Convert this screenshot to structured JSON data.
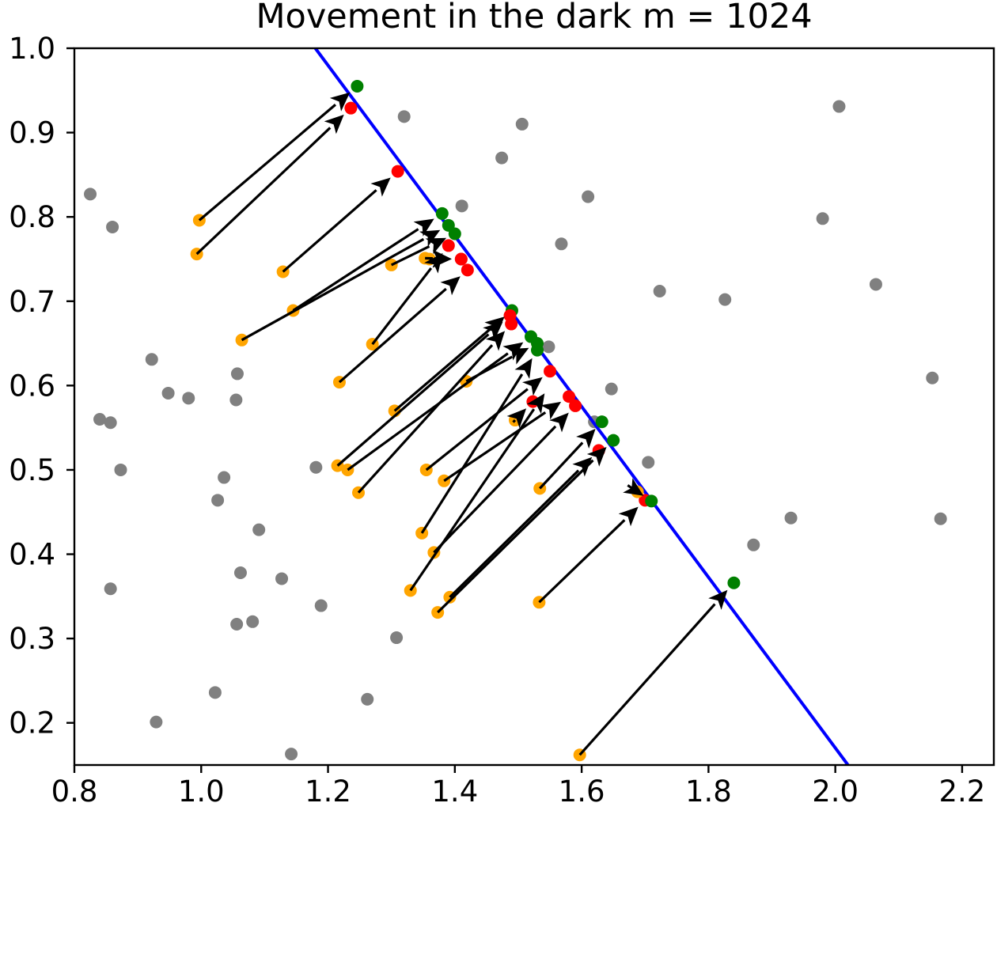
{
  "chart_data": {
    "type": "scatter",
    "title": "Movement in the dark m = 1024",
    "xlabel": "",
    "ylabel": "",
    "xlim": [
      0.8,
      2.25
    ],
    "ylim": [
      0.15,
      1.0
    ],
    "xticks": [
      "0.8",
      "1.0",
      "1.2",
      "1.4",
      "1.6",
      "1.8",
      "2.0",
      "2.2"
    ],
    "yticks": [
      "0.2",
      "0.3",
      "0.4",
      "0.5",
      "0.6",
      "0.7",
      "0.8",
      "0.9",
      "1.0"
    ],
    "grid": false,
    "legend": "none",
    "colors": {
      "gray": "#808080",
      "orange": "#ffa500",
      "red": "#ff0000",
      "green": "#008000",
      "arrow": "#000000",
      "line": "#0000ff"
    },
    "boundary_line": {
      "x1": 1.18,
      "y1": 1.0,
      "x2": 2.02,
      "y2": 0.15
    },
    "gray_points": [
      [
        0.825,
        0.827
      ],
      [
        0.86,
        0.788
      ],
      [
        0.84,
        0.56
      ],
      [
        0.857,
        0.556
      ],
      [
        0.873,
        0.5
      ],
      [
        0.857,
        0.359
      ],
      [
        0.922,
        0.631
      ],
      [
        0.948,
        0.591
      ],
      [
        0.98,
        0.585
      ],
      [
        0.929,
        0.201
      ],
      [
        1.057,
        0.614
      ],
      [
        1.055,
        0.583
      ],
      [
        1.036,
        0.491
      ],
      [
        1.026,
        0.464
      ],
      [
        1.091,
        0.429
      ],
      [
        1.062,
        0.378
      ],
      [
        1.127,
        0.371
      ],
      [
        1.056,
        0.317
      ],
      [
        1.081,
        0.32
      ],
      [
        1.189,
        0.339
      ],
      [
        1.022,
        0.236
      ],
      [
        1.142,
        0.163
      ],
      [
        1.262,
        0.228
      ],
      [
        1.181,
        0.503
      ],
      [
        1.308,
        0.301
      ],
      [
        1.32,
        0.919
      ],
      [
        1.506,
        0.91
      ],
      [
        1.474,
        0.87
      ],
      [
        1.411,
        0.813
      ],
      [
        1.61,
        0.824
      ],
      [
        1.568,
        0.768
      ],
      [
        1.723,
        0.712
      ],
      [
        1.826,
        0.702
      ],
      [
        1.548,
        0.646
      ],
      [
        1.647,
        0.596
      ],
      [
        1.62,
        0.557
      ],
      [
        1.705,
        0.509
      ],
      [
        2.006,
        0.931
      ],
      [
        1.98,
        0.798
      ],
      [
        2.064,
        0.72
      ],
      [
        2.153,
        0.609
      ],
      [
        2.166,
        0.442
      ],
      [
        1.93,
        0.443
      ],
      [
        1.871,
        0.411
      ]
    ],
    "moves": [
      {
        "from": [
          0.997,
          0.796
        ],
        "to": [
          1.246,
          0.955
        ],
        "end": "green"
      },
      {
        "from": [
          0.993,
          0.756
        ],
        "to": [
          1.236,
          0.929
        ],
        "end": "red"
      },
      {
        "from": [
          1.129,
          0.735
        ],
        "to": [
          1.31,
          0.854
        ],
        "end": "red"
      },
      {
        "from": [
          1.145,
          0.689
        ],
        "to": [
          1.38,
          0.804
        ],
        "end": "green"
      },
      {
        "from": [
          1.064,
          0.654
        ],
        "to": [
          1.39,
          0.79
        ],
        "end": "green"
      },
      {
        "from": [
          1.3,
          0.743
        ],
        "to": [
          1.4,
          0.78
        ],
        "end": "green"
      },
      {
        "from": [
          1.27,
          0.649
        ],
        "to": [
          1.39,
          0.766
        ],
        "end": "red"
      },
      {
        "from": [
          1.353,
          0.751
        ],
        "to": [
          1.41,
          0.75
        ],
        "end": "red"
      },
      {
        "from": [
          1.36,
          0.75
        ],
        "to": [
          1.41,
          0.75
        ],
        "end": "red"
      },
      {
        "from": [
          1.218,
          0.604
        ],
        "to": [
          1.42,
          0.737
        ],
        "end": "red"
      },
      {
        "from": [
          1.305,
          0.57
        ],
        "to": [
          1.49,
          0.689
        ],
        "end": "green"
      },
      {
        "from": [
          1.215,
          0.505
        ],
        "to": [
          1.487,
          0.683
        ],
        "end": "red"
      },
      {
        "from": [
          1.231,
          0.5
        ],
        "to": [
          1.52,
          0.658
        ],
        "end": "green"
      },
      {
        "from": [
          1.248,
          0.473
        ],
        "to": [
          1.489,
          0.673
        ],
        "end": "red"
      },
      {
        "from": [
          1.418,
          0.605
        ],
        "to": [
          1.53,
          0.65
        ],
        "end": "green"
      },
      {
        "from": [
          1.355,
          0.5
        ],
        "to": [
          1.55,
          0.617
        ],
        "end": "red"
      },
      {
        "from": [
          1.348,
          0.425
        ],
        "to": [
          1.53,
          0.642
        ],
        "end": "green"
      },
      {
        "from": [
          1.383,
          0.487
        ],
        "to": [
          1.58,
          0.587
        ],
        "end": "red"
      },
      {
        "from": [
          1.495,
          0.559
        ],
        "to": [
          1.523,
          0.581
        ],
        "end": "red"
      },
      {
        "from": [
          1.367,
          0.402
        ],
        "to": [
          1.59,
          0.576
        ],
        "end": "red"
      },
      {
        "from": [
          1.33,
          0.357
        ],
        "to": [
          1.55,
          0.6
        ],
        "end": "none"
      },
      {
        "from": [
          1.534,
          0.478
        ],
        "to": [
          1.632,
          0.557
        ],
        "end": "green"
      },
      {
        "from": [
          1.392,
          0.349
        ],
        "to": [
          1.627,
          0.523
        ],
        "end": "red"
      },
      {
        "from": [
          1.373,
          0.331
        ],
        "to": [
          1.65,
          0.535
        ],
        "end": "green"
      },
      {
        "from": [
          1.533,
          0.343
        ],
        "to": [
          1.7,
          0.464
        ],
        "end": "red"
      },
      {
        "from": [
          1.688,
          0.474
        ],
        "to": [
          1.71,
          0.463
        ],
        "end": "green"
      },
      {
        "from": [
          1.597,
          0.162
        ],
        "to": [
          1.84,
          0.366
        ],
        "end": "green"
      }
    ]
  }
}
